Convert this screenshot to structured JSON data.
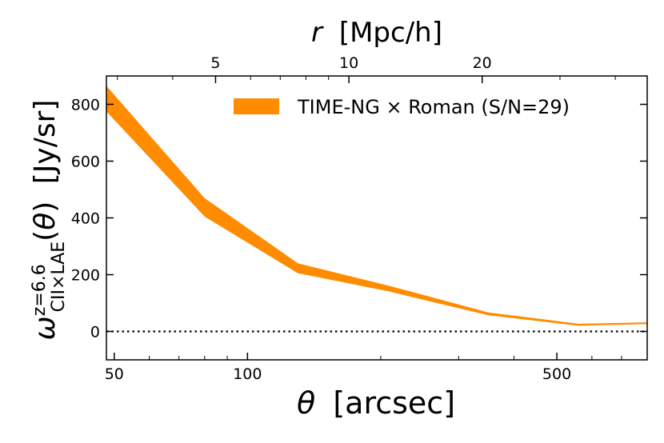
{
  "chart_data": {
    "type": "area",
    "x_scale": "log",
    "y_scale": "linear",
    "xlabel_symbol": "θ",
    "xlabel_unit": "[arcsec]",
    "ylabel_unit": "[Jy/sr]",
    "secondary_xlabel_symbol": "r",
    "secondary_xlabel_unit": "[Mpc/h]",
    "xlim": [
      48,
      800
    ],
    "ylim": [
      -100,
      900
    ],
    "x_ticks": [
      {
        "value": 50,
        "label": "50"
      },
      {
        "value": 100,
        "label": "100"
      },
      {
        "value": 500,
        "label": "500"
      }
    ],
    "y_ticks": [
      {
        "value": 0,
        "label": "0"
      },
      {
        "value": 200,
        "label": "200"
      },
      {
        "value": 400,
        "label": "400"
      },
      {
        "value": 600,
        "label": "600"
      },
      {
        "value": 800,
        "label": "800"
      }
    ],
    "top_ticks": [
      {
        "theta": 84.7,
        "label": "5"
      },
      {
        "theta": 169.5,
        "label": "10"
      },
      {
        "theta": 339.0,
        "label": "20"
      }
    ],
    "series": [
      {
        "name": "TIME-NG × Roman (S/N=29)",
        "color": "#ff8c00",
        "x": [
          48,
          80,
          130,
          210,
          350,
          560,
          800
        ],
        "lower": [
          775,
          405,
          205,
          140,
          57,
          20,
          26
        ],
        "upper": [
          865,
          470,
          240,
          160,
          67,
          27,
          32
        ]
      }
    ],
    "reference_line": {
      "y": 0,
      "style": "dotted",
      "color": "#000000"
    },
    "legend": {
      "position": "top-right"
    }
  }
}
